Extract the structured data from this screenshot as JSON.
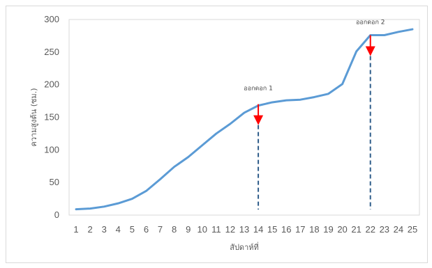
{
  "chart_data": {
    "type": "line",
    "xlabel": "สัปดาห์ที่",
    "ylabel": "ความสูงต้น (ซม.)",
    "x": [
      1,
      2,
      3,
      4,
      5,
      6,
      7,
      8,
      9,
      10,
      11,
      12,
      13,
      14,
      15,
      16,
      17,
      18,
      19,
      20,
      21,
      22,
      23,
      24,
      25
    ],
    "series": [
      {
        "values": [
          9,
          10,
          13,
          18,
          25,
          37,
          55,
          74,
          89,
          107,
          125,
          140,
          157,
          168,
          173,
          176,
          177,
          181,
          186,
          201,
          251,
          276,
          276,
          281,
          285
        ],
        "color": "#5b9bd5"
      }
    ],
    "ylim": [
      0,
      300
    ],
    "yticks": [
      0,
      50,
      100,
      150,
      200,
      250,
      300
    ],
    "grid": false,
    "annotations": [
      {
        "label": "ออกดอก 1",
        "x": 14,
        "marker_color": "#ff0000",
        "line_color": "#2e5c8a"
      },
      {
        "label": "ออกดอก 2",
        "x": 22,
        "marker_color": "#ff0000",
        "line_color": "#2e5c8a"
      }
    ]
  }
}
